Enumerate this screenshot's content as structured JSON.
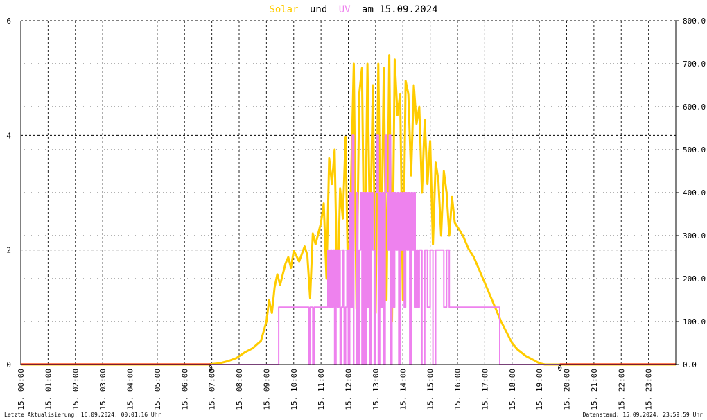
{
  "colors": {
    "solar": "#ffcc00",
    "uv": "#ee82ee",
    "zero_marker": "#ff0000",
    "grid": "#000000"
  },
  "title": {
    "part1": "Solar",
    "part2": "und",
    "part3": "UV",
    "part4": "am 15.09.2024"
  },
  "footer": {
    "left": "Letzte Aktualisierung: 16.09.2024, 00:01:16 Uhr",
    "right": "Datenstand: 15.09.2024, 23:59:59 Uhr"
  },
  "chart_data": {
    "type": "line",
    "grid": true,
    "x_unit": "hour",
    "xlim": [
      0,
      24
    ],
    "x_tick_labels": [
      "15. 00:00",
      "15. 01:00",
      "15. 02:00",
      "15. 03:00",
      "15. 04:00",
      "15. 05:00",
      "15. 06:00",
      "15. 07:00",
      "15. 08:00",
      "15. 09:00",
      "15. 10:00",
      "15. 11:00",
      "15. 12:00",
      "15. 13:00",
      "15. 14:00",
      "15. 15:00",
      "15. 16:00",
      "15. 17:00",
      "15. 18:00",
      "15. 19:00",
      "15. 20:00",
      "15. 21:00",
      "15. 22:00",
      "15. 23:00"
    ],
    "y_left": {
      "ylim": [
        0,
        6
      ],
      "tick_labels": [
        "0",
        "2",
        "4",
        "6"
      ]
    },
    "y_right": {
      "ylim": [
        0,
        800
      ],
      "tick_labels": [
        "0.0",
        "100.0",
        "200.0",
        "300.0",
        "400.0",
        "500.0",
        "600.0",
        "700.0",
        "800.0"
      ]
    },
    "zero_markers": [
      {
        "label": "0",
        "x": 6.95
      },
      {
        "label": "0",
        "x": 19.75
      }
    ],
    "series": [
      {
        "name": "Solar",
        "axis": "right",
        "color": "#ffcc00",
        "x": [
          0,
          6.9,
          7.0,
          7.3,
          7.6,
          7.9,
          8.2,
          8.5,
          8.8,
          9.0,
          9.1,
          9.2,
          9.3,
          9.4,
          9.5,
          9.7,
          9.8,
          9.9,
          10.0,
          10.2,
          10.4,
          10.5,
          10.6,
          10.7,
          10.8,
          11.0,
          11.1,
          11.2,
          11.3,
          11.4,
          11.5,
          11.6,
          11.7,
          11.8,
          11.9,
          12.0,
          12.1,
          12.2,
          12.3,
          12.4,
          12.5,
          12.6,
          12.7,
          12.8,
          12.9,
          13.0,
          13.1,
          13.2,
          13.3,
          13.4,
          13.5,
          13.6,
          13.7,
          13.8,
          13.9,
          14.0,
          14.1,
          14.2,
          14.3,
          14.4,
          14.5,
          14.6,
          14.7,
          14.8,
          14.9,
          15.0,
          15.1,
          15.2,
          15.3,
          15.4,
          15.5,
          15.6,
          15.7,
          15.8,
          15.9,
          16.0,
          16.2,
          16.4,
          16.6,
          16.8,
          17.0,
          17.2,
          17.4,
          17.6,
          17.8,
          18.0,
          18.2,
          18.5,
          18.8,
          19.0,
          19.2,
          19.4,
          19.6,
          19.8,
          20.0,
          24
        ],
        "y": [
          0,
          0,
          1,
          3,
          8,
          15,
          28,
          38,
          55,
          100,
          150,
          120,
          180,
          210,
          185,
          235,
          250,
          225,
          265,
          240,
          275,
          255,
          155,
          305,
          280,
          330,
          375,
          200,
          480,
          420,
          500,
          150,
          410,
          340,
          530,
          160,
          420,
          700,
          130,
          630,
          690,
          150,
          700,
          280,
          650,
          120,
          700,
          200,
          690,
          150,
          720,
          100,
          710,
          580,
          630,
          150,
          660,
          630,
          440,
          650,
          560,
          600,
          400,
          570,
          420,
          520,
          280,
          470,
          430,
          300,
          450,
          400,
          300,
          390,
          330,
          320,
          300,
          270,
          250,
          220,
          190,
          160,
          130,
          100,
          75,
          50,
          35,
          20,
          10,
          3,
          0,
          0,
          0,
          0,
          0,
          0
        ]
      },
      {
        "name": "UV",
        "axis": "left",
        "color": "#ee82ee",
        "x": [
          0,
          9.4,
          9.45,
          10.5,
          10.55,
          10.6,
          10.7,
          10.75,
          11.2,
          11.25,
          11.3,
          11.35,
          11.4,
          11.45,
          11.5,
          11.55,
          11.6,
          11.65,
          11.7,
          11.75,
          11.8,
          11.85,
          11.9,
          11.95,
          12.0,
          12.05,
          12.1,
          12.15,
          12.2,
          12.3,
          12.35,
          12.4,
          12.45,
          12.5,
          12.55,
          12.6,
          12.65,
          12.7,
          12.75,
          12.8,
          12.85,
          12.9,
          12.95,
          13.0,
          13.05,
          13.1,
          13.15,
          13.2,
          13.25,
          13.3,
          13.35,
          13.4,
          13.45,
          13.5,
          13.55,
          13.6,
          13.65,
          13.7,
          13.75,
          13.8,
          13.85,
          13.9,
          13.95,
          14.0,
          14.05,
          14.1,
          14.15,
          14.2,
          14.25,
          14.3,
          14.35,
          14.4,
          14.45,
          14.5,
          14.55,
          14.6,
          14.7,
          14.8,
          14.9,
          15.0,
          15.1,
          15.2,
          15.3,
          15.4,
          15.5,
          15.6,
          15.7,
          15.8,
          15.9,
          16.0,
          16.1,
          17.5,
          17.55,
          17.6,
          18.0,
          24
        ],
        "y": [
          0,
          0,
          1,
          1,
          0,
          1,
          0,
          1,
          1,
          2,
          1,
          2,
          1,
          2,
          0,
          2,
          1,
          2,
          0,
          1,
          2,
          0,
          1,
          2,
          0,
          3,
          1,
          4,
          0,
          3,
          0,
          2,
          3,
          0,
          3,
          0,
          3,
          1,
          3,
          0,
          3,
          2,
          0,
          3,
          4,
          0,
          3,
          1,
          3,
          0,
          4,
          3,
          2,
          4,
          0,
          3,
          1,
          3,
          2,
          3,
          0,
          3,
          2,
          3,
          1,
          3,
          2,
          3,
          0,
          3,
          2,
          3,
          1,
          2,
          1,
          2,
          0,
          2,
          1,
          2,
          0,
          2,
          2,
          2,
          1,
          2,
          1,
          1,
          1,
          1,
          1,
          1,
          0,
          0,
          0,
          0
        ]
      }
    ]
  }
}
